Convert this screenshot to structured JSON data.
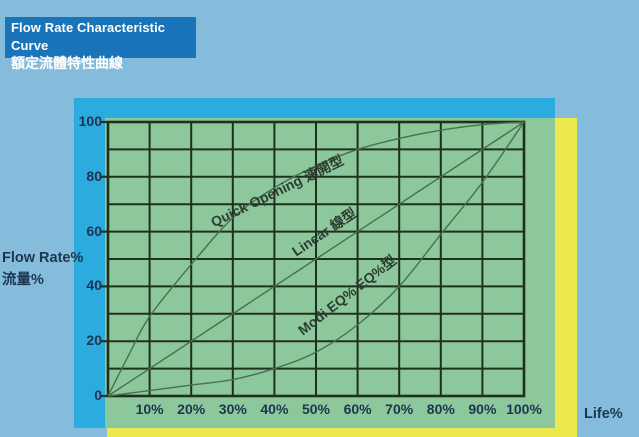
{
  "colors": {
    "background": "#85bcdc",
    "title_box": "#1a74b9",
    "cyan_band": "#2cabdf",
    "yellow_band": "#ece94f",
    "plot_panel": "#8dc79c",
    "grid_line": "#20301f",
    "curve_line": "#47714f",
    "axis_text": "#1c3550",
    "curve_label_text": "#2c3e31",
    "title_text": "#ffffff"
  },
  "title": {
    "line1": "Flow Rate Characteristic Curve",
    "line2": "額定流體特性曲線"
  },
  "axis": {
    "y_label_line1": "Flow Rate%",
    "y_label_line2": "流量%",
    "x_label": "Life%",
    "y_ticks": [
      {
        "label": "0",
        "value": 0
      },
      {
        "label": "20",
        "value": 20
      },
      {
        "label": "40",
        "value": 40
      },
      {
        "label": "60",
        "value": 60
      },
      {
        "label": "80",
        "value": 80
      },
      {
        "label": "100",
        "value": 100
      }
    ],
    "x_ticks": [
      {
        "label": "10%",
        "value": 10
      },
      {
        "label": "20%",
        "value": 20
      },
      {
        "label": "30%",
        "value": 30
      },
      {
        "label": "40%",
        "value": 40
      },
      {
        "label": "50%",
        "value": 50
      },
      {
        "label": "60%",
        "value": 60
      },
      {
        "label": "70%",
        "value": 70
      },
      {
        "label": "80%",
        "value": 80
      },
      {
        "label": "90%",
        "value": 90
      },
      {
        "label": "100%",
        "value": 100
      }
    ]
  },
  "chart_data": {
    "type": "line",
    "title": "Flow Rate Characteristic Curve 額定流體特性曲線",
    "xlabel": "Life%",
    "ylabel": "Flow Rate% 流量%",
    "xlim": [
      0,
      100
    ],
    "ylim": [
      0,
      100
    ],
    "grid": true,
    "grid_step": 10,
    "legend_position": "labels-along-curves",
    "series": [
      {
        "name": "Quick Opening 速開型",
        "points": [
          [
            0,
            0
          ],
          [
            5,
            15
          ],
          [
            10,
            29
          ],
          [
            20,
            48
          ],
          [
            30,
            65
          ],
          [
            40,
            76
          ],
          [
            50,
            84
          ],
          [
            60,
            90
          ],
          [
            70,
            94
          ],
          [
            80,
            97
          ],
          [
            90,
            99
          ],
          [
            100,
            100
          ]
        ]
      },
      {
        "name": "Linear 線型",
        "points": [
          [
            0,
            0
          ],
          [
            50,
            50
          ],
          [
            100,
            100
          ]
        ]
      },
      {
        "name": "Modi.EQ% EQ%型",
        "points": [
          [
            0,
            0
          ],
          [
            10,
            2
          ],
          [
            20,
            4
          ],
          [
            30,
            6
          ],
          [
            40,
            10
          ],
          [
            50,
            16
          ],
          [
            60,
            26
          ],
          [
            70,
            40
          ],
          [
            80,
            59
          ],
          [
            90,
            78
          ],
          [
            100,
            100
          ]
        ]
      }
    ]
  }
}
